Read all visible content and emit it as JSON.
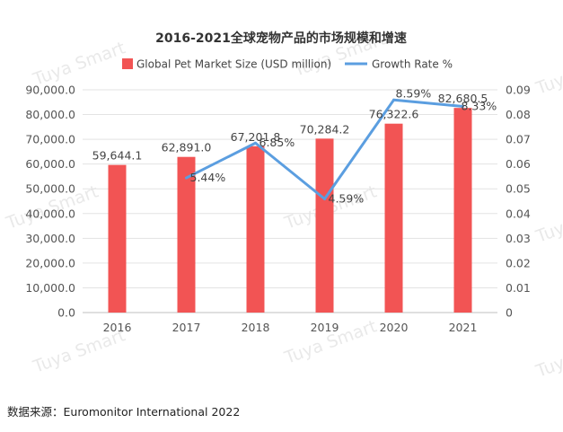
{
  "chart_data": {
    "type": "bar",
    "title": "2016-2021全球宠物产品的市场规模和增速",
    "categories": [
      "2016",
      "2017",
      "2018",
      "2019",
      "2020",
      "2021"
    ],
    "series": [
      {
        "name": "Global Pet Market Size (USD million)",
        "type": "bar",
        "axis": "left",
        "values": [
          59644.1,
          62891.0,
          67201.8,
          70284.2,
          76322.6,
          82680.5
        ],
        "labels": [
          "59,644.1",
          "62,891.0",
          "67,201.8",
          "70,284.2",
          "76,322.6",
          "82,680.5"
        ],
        "color": "#f25454"
      },
      {
        "name": "Growth Rate %",
        "type": "line",
        "axis": "right",
        "values": [
          null,
          0.0544,
          0.0685,
          0.0459,
          0.0859,
          0.0833
        ],
        "labels": [
          "",
          "5.44%",
          "6.85%",
          "4.59%",
          "8.59%",
          "8.33%"
        ],
        "color": "#5b9ee0"
      }
    ],
    "y_left": {
      "range": [
        0,
        90000
      ],
      "ticks": [
        "0.0",
        "10,000.0",
        "20,000.0",
        "30,000.0",
        "40,000.0",
        "50,000.0",
        "60,000.0",
        "70,000.0",
        "80,000.0",
        "90,000.0"
      ]
    },
    "y_right": {
      "range": [
        0,
        0.09
      ],
      "ticks": [
        "0",
        "0.01",
        "0.02",
        "0.03",
        "0.04",
        "0.05",
        "0.06",
        "0.07",
        "0.08",
        "0.09"
      ]
    },
    "grid": true,
    "legend_position": "top-center"
  },
  "watermark": "Tuya Smart",
  "source": "数据来源：Euromonitor International 2022"
}
